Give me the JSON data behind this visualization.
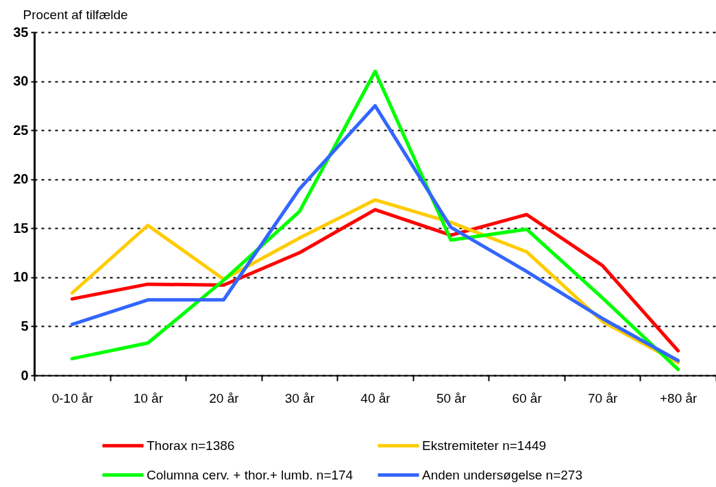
{
  "chart_data": {
    "type": "line",
    "ylabel": "Procent af tilfælde",
    "categories": [
      "0-10 år",
      "10 år",
      "20 år",
      "30 år",
      "40 år",
      "50 år",
      "60 år",
      "70 år",
      "+80 år"
    ],
    "series": [
      {
        "name": "Thorax n=1386",
        "color": "#ff0000",
        "values": [
          7.8,
          9.3,
          9.2,
          12.5,
          16.9,
          14.3,
          16.4,
          11.2,
          2.5
        ]
      },
      {
        "name": "Ekstremiteter n=1449",
        "color": "#ffcc00",
        "values": [
          8.4,
          15.3,
          9.8,
          14.0,
          17.9,
          15.6,
          12.6,
          5.5,
          1.3
        ]
      },
      {
        "name": "Columna cerv. + thor.+ lumb. n=174",
        "color": "#00ff00",
        "values": [
          1.7,
          3.3,
          9.7,
          16.7,
          31.0,
          13.8,
          14.9,
          7.9,
          0.6
        ]
      },
      {
        "name": "Anden undersøgelse n=273",
        "color": "#3366ff",
        "values": [
          5.2,
          7.7,
          7.7,
          19.0,
          27.5,
          15.1,
          10.6,
          5.8,
          1.5
        ]
      }
    ],
    "ylim": [
      0,
      35
    ],
    "yticks": [
      0,
      5,
      10,
      15,
      20,
      25,
      30,
      35
    ],
    "grid": "y",
    "legend": "bottom"
  }
}
